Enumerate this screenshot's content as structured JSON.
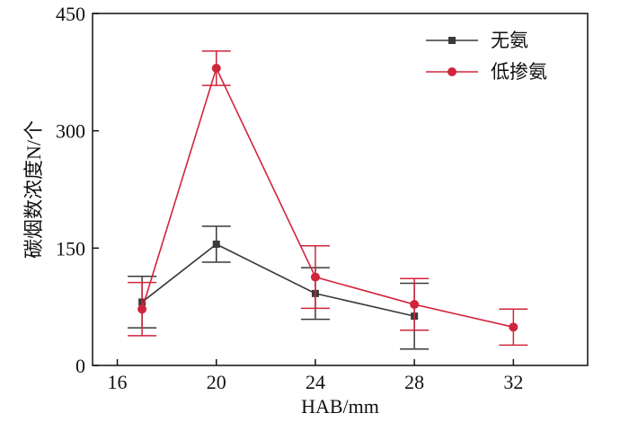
{
  "chart_data": {
    "type": "line",
    "title": "",
    "xlabel": "HAB/mm",
    "ylabel": "碳烟数浓度N/个",
    "xlim": [
      15,
      35
    ],
    "ylim": [
      0,
      450
    ],
    "xticks": [
      16,
      20,
      24,
      28,
      32
    ],
    "yticks": [
      0,
      150,
      300,
      450
    ],
    "x_tick_labels": [
      "16",
      "20",
      "24",
      "28",
      "32"
    ],
    "y_tick_labels": [
      "0",
      "150",
      "300",
      "450"
    ],
    "grid": false,
    "legend_position": "top-right",
    "series": [
      {
        "name": "无氨",
        "color": "#3a3a3a",
        "marker": "square",
        "x": [
          17,
          20,
          24,
          28
        ],
        "y": [
          81,
          155,
          92,
          63
        ],
        "error": [
          33,
          23,
          33,
          42
        ]
      },
      {
        "name": "低掺氨",
        "color": "#d0253c",
        "marker": "circle",
        "x": [
          17,
          20,
          24,
          28,
          32
        ],
        "y": [
          72,
          380,
          113,
          78,
          49
        ],
        "error": [
          34,
          22,
          40,
          33,
          23
        ]
      }
    ]
  }
}
